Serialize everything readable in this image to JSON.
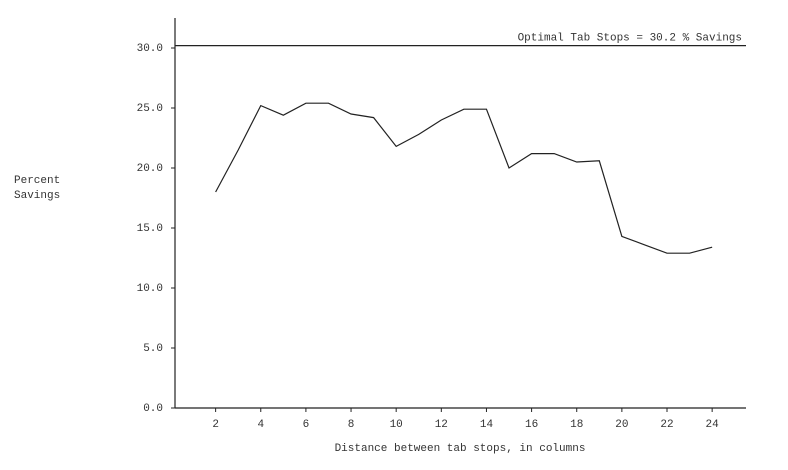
{
  "chart_data": {
    "type": "line",
    "ylabel": "Percent Savings",
    "xlabel": "Distance between tab stops, in columns",
    "x": [
      2,
      3,
      4,
      5,
      6,
      7,
      8,
      9,
      10,
      11,
      12,
      13,
      14,
      15,
      16,
      17,
      18,
      19,
      20,
      21,
      22,
      23,
      24
    ],
    "values": [
      18.0,
      21.5,
      25.2,
      24.4,
      25.4,
      25.4,
      24.5,
      24.2,
      21.8,
      22.8,
      24.0,
      24.9,
      24.9,
      20.0,
      21.2,
      21.2,
      20.5,
      20.6,
      14.3,
      13.6,
      12.9,
      12.9,
      13.4
    ],
    "color": "#222222",
    "xlim": [
      0.2,
      25.5
    ],
    "xticks": [
      2,
      4,
      6,
      8,
      10,
      12,
      14,
      16,
      18,
      20,
      22,
      24
    ],
    "ylim": [
      0,
      32.5
    ],
    "yticks": [
      {
        "value": 0,
        "label": "0.0"
      },
      {
        "value": 5,
        "label": "5.0"
      },
      {
        "value": 10,
        "label": "10.0"
      },
      {
        "value": 15,
        "label": "15.0"
      },
      {
        "value": 20,
        "label": "20.0"
      },
      {
        "value": 25,
        "label": "25.0"
      },
      {
        "value": 30,
        "label": "30.0"
      }
    ],
    "reference_line": {
      "value": 30.2,
      "label": "Optimal Tab Stops = 30.2 % Savings"
    }
  }
}
